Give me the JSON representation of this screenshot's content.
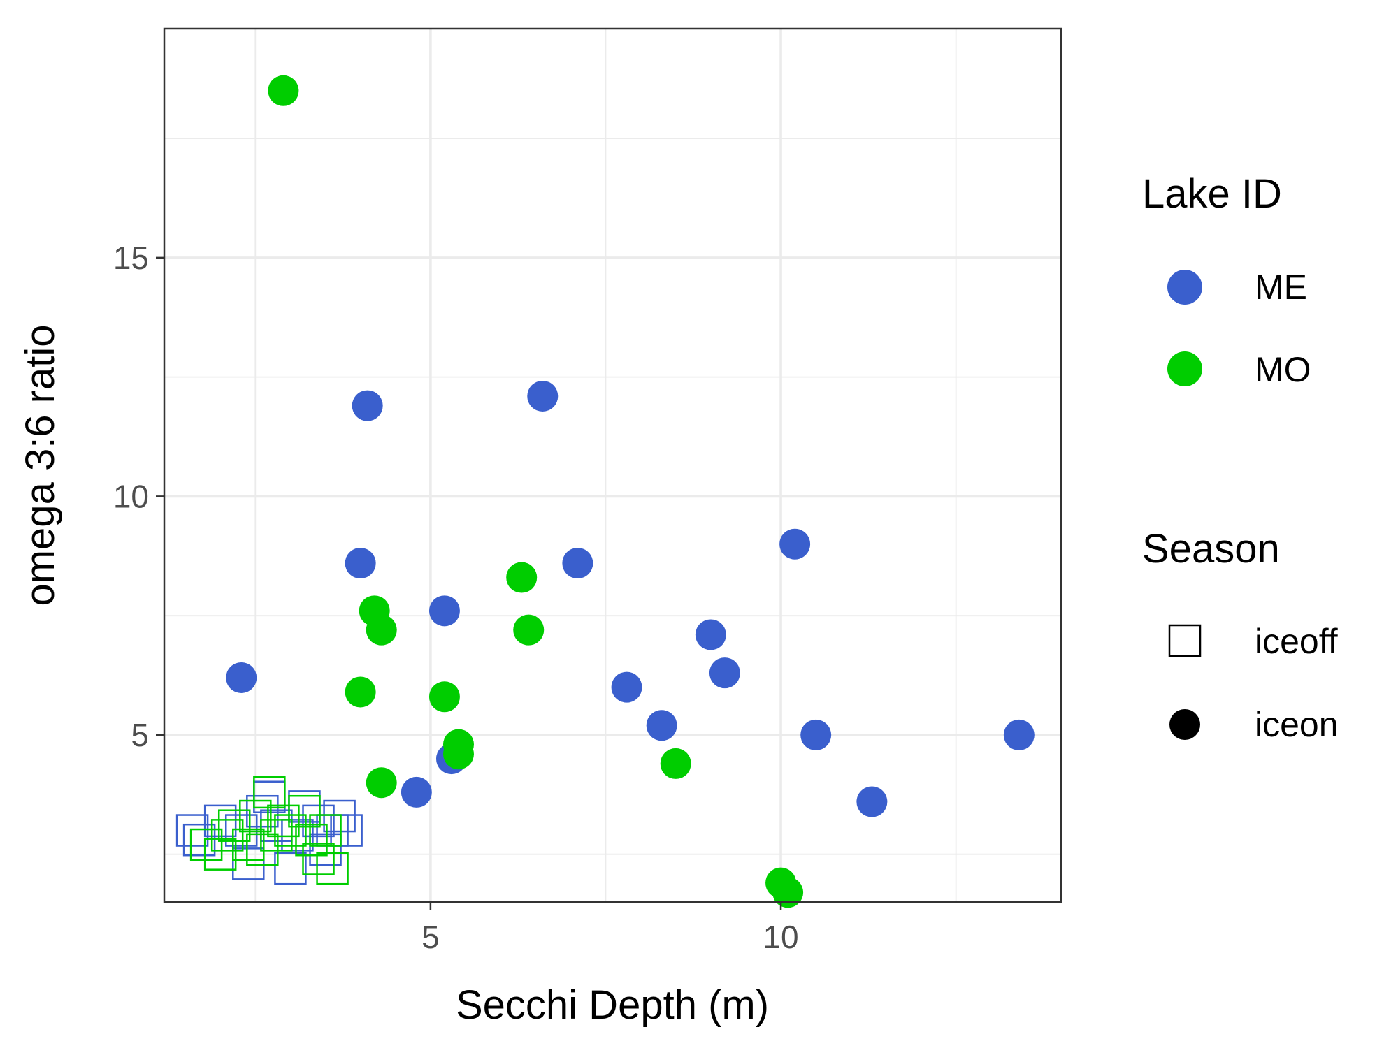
{
  "chart_data": {
    "type": "scatter",
    "xlabel": "Secchi Depth (m)",
    "ylabel": "omega 3:6 ratio",
    "xlim": [
      1.2,
      14.0
    ],
    "ylim": [
      1.5,
      19.8
    ],
    "x_ticks": [
      5,
      10
    ],
    "y_ticks": [
      5,
      10,
      15
    ],
    "grid": true,
    "legend_position": "right",
    "legends": {
      "color": {
        "title": "Lake ID",
        "entries": [
          {
            "label": "ME",
            "color": "#3a5fcd"
          },
          {
            "label": "MO",
            "color": "#00cd00"
          }
        ]
      },
      "shape": {
        "title": "Season",
        "entries": [
          {
            "label": "iceoff",
            "shape": "open-square"
          },
          {
            "label": "iceon",
            "shape": "filled-circle"
          }
        ]
      }
    },
    "series": [
      {
        "lake": "ME",
        "season": "iceon",
        "color": "#3a5fcd",
        "shape": "filled-circle",
        "points": [
          {
            "x": 2.3,
            "y": 6.2
          },
          {
            "x": 4.1,
            "y": 11.9
          },
          {
            "x": 6.6,
            "y": 12.1
          },
          {
            "x": 4.0,
            "y": 8.6
          },
          {
            "x": 7.1,
            "y": 8.6
          },
          {
            "x": 5.2,
            "y": 7.6
          },
          {
            "x": 10.2,
            "y": 9.0
          },
          {
            "x": 9.0,
            "y": 7.1
          },
          {
            "x": 9.2,
            "y": 6.3
          },
          {
            "x": 7.8,
            "y": 6.0
          },
          {
            "x": 8.3,
            "y": 5.2
          },
          {
            "x": 10.5,
            "y": 5.0
          },
          {
            "x": 13.4,
            "y": 5.0
          },
          {
            "x": 5.3,
            "y": 4.5
          },
          {
            "x": 4.8,
            "y": 3.8
          },
          {
            "x": 11.3,
            "y": 3.6
          }
        ]
      },
      {
        "lake": "MO",
        "season": "iceon",
        "color": "#00cd00",
        "shape": "filled-circle",
        "points": [
          {
            "x": 2.9,
            "y": 18.5
          },
          {
            "x": 6.3,
            "y": 8.3
          },
          {
            "x": 4.2,
            "y": 7.6
          },
          {
            "x": 4.3,
            "y": 7.2
          },
          {
            "x": 6.4,
            "y": 7.2
          },
          {
            "x": 4.0,
            "y": 5.9
          },
          {
            "x": 5.2,
            "y": 5.8
          },
          {
            "x": 5.4,
            "y": 4.8
          },
          {
            "x": 5.4,
            "y": 4.6
          },
          {
            "x": 8.5,
            "y": 4.4
          },
          {
            "x": 4.3,
            "y": 4.0
          },
          {
            "x": 10.0,
            "y": 1.9
          },
          {
            "x": 10.1,
            "y": 1.7
          }
        ]
      },
      {
        "lake": "ME",
        "season": "iceoff",
        "color": "#3a5fcd",
        "shape": "open-square",
        "points": [
          {
            "x": 1.6,
            "y": 3.0
          },
          {
            "x": 1.7,
            "y": 2.8
          },
          {
            "x": 2.0,
            "y": 3.2
          },
          {
            "x": 2.3,
            "y": 3.0
          },
          {
            "x": 2.4,
            "y": 2.3
          },
          {
            "x": 2.6,
            "y": 3.4
          },
          {
            "x": 2.7,
            "y": 3.7
          },
          {
            "x": 2.8,
            "y": 3.1
          },
          {
            "x": 3.0,
            "y": 2.2
          },
          {
            "x": 3.1,
            "y": 2.9
          },
          {
            "x": 3.2,
            "y": 3.5
          },
          {
            "x": 3.4,
            "y": 3.2
          },
          {
            "x": 3.5,
            "y": 2.6
          },
          {
            "x": 3.6,
            "y": 3.0
          },
          {
            "x": 3.7,
            "y": 3.3
          },
          {
            "x": 3.8,
            "y": 3.0
          }
        ]
      },
      {
        "lake": "MO",
        "season": "iceoff",
        "color": "#00cd00",
        "shape": "open-square",
        "points": [
          {
            "x": 1.8,
            "y": 2.7
          },
          {
            "x": 2.0,
            "y": 2.5
          },
          {
            "x": 2.1,
            "y": 2.9
          },
          {
            "x": 2.2,
            "y": 3.1
          },
          {
            "x": 2.4,
            "y": 2.7
          },
          {
            "x": 2.5,
            "y": 3.3
          },
          {
            "x": 2.6,
            "y": 2.6
          },
          {
            "x": 2.7,
            "y": 3.8
          },
          {
            "x": 2.8,
            "y": 2.9
          },
          {
            "x": 2.9,
            "y": 3.2
          },
          {
            "x": 3.0,
            "y": 3.0
          },
          {
            "x": 3.2,
            "y": 3.4
          },
          {
            "x": 3.3,
            "y": 2.8
          },
          {
            "x": 3.4,
            "y": 2.4
          },
          {
            "x": 3.6,
            "y": 2.2
          },
          {
            "x": 3.5,
            "y": 3.0
          }
        ]
      }
    ]
  }
}
